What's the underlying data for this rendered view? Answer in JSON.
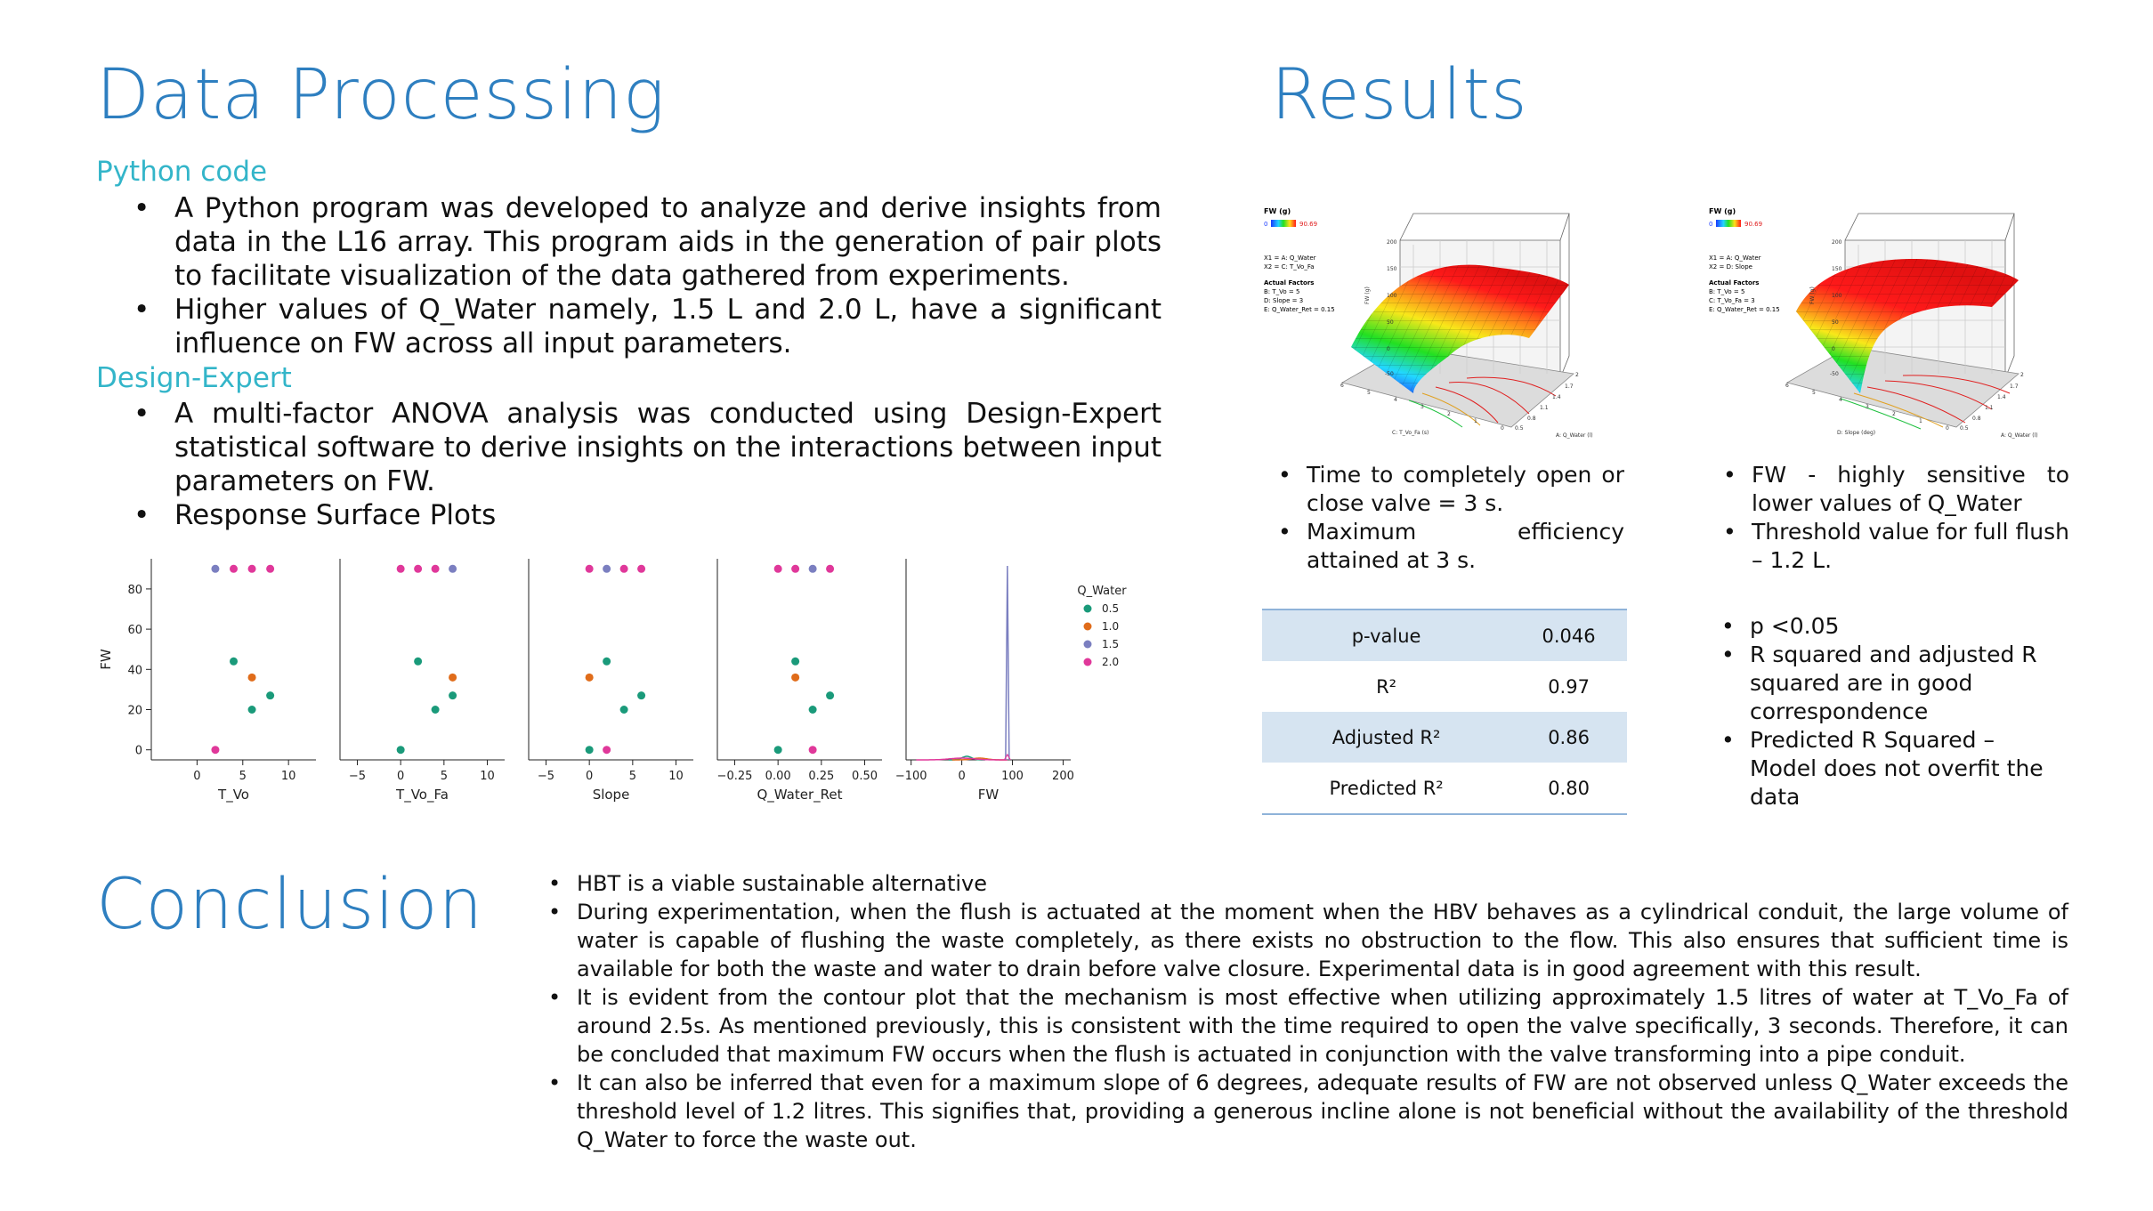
{
  "data_processing": {
    "title": "Data Processing",
    "python": {
      "heading": "Python code",
      "bullets": [
        "A Python program was developed to analyze and derive insights from data in the L16 array. This program aids in the generation of pair plots to facilitate visualization of the data gathered from experiments.",
        "Higher values of Q_Water namely, 1.5 L and 2.0 L, have a significant influence on FW across all input parameters."
      ]
    },
    "design_expert": {
      "heading": "Design-Expert",
      "bullets": [
        "A multi-factor ANOVA analysis was conducted using Design-Expert statistical software to derive insights on the interactions between input parameters on FW.",
        "Response Surface Plots"
      ]
    }
  },
  "results": {
    "title": "Results",
    "plot_left": {
      "legend_title": "FW (g)",
      "legend_min": "0",
      "legend_max": "90.69",
      "x1": "X1 = A: Q_Water",
      "x2": "X2 = C: T_Vo_Fa",
      "actual_heading": "Actual Factors",
      "factors": [
        "B: T_Vo = 5",
        "D: Slope = 3",
        "E: Q_Water_Ret = 0.15"
      ],
      "zlabel": "FW (g)",
      "xaxis": "C: T_Vo_Fa (s)",
      "yaxis": "A: Q_Water (l)",
      "zticks": [
        "200",
        "150",
        "100",
        "50",
        "0",
        "-50"
      ],
      "xticks": [
        "6",
        "5",
        "4",
        "3",
        "2",
        "1",
        "0"
      ],
      "yticks": [
        "2",
        "1.7",
        "1.4",
        "1.1",
        "0.8",
        "0.5"
      ]
    },
    "plot_right": {
      "legend_title": "FW (g)",
      "legend_min": "0",
      "legend_max": "90.69",
      "x1": "X1 = A: Q_Water",
      "x2": "X2 = D: Slope",
      "actual_heading": "Actual Factors",
      "factors": [
        "B: T_Vo = 5",
        "C: T_Vo_Fa = 3",
        "E: Q_Water_Ret = 0.15"
      ],
      "zlabel": "FW (g)",
      "xaxis": "D: Slope (deg)",
      "yaxis": "A: Q_Water (l)",
      "zticks": [
        "200",
        "150",
        "100",
        "50",
        "0",
        "-50"
      ],
      "xticks": [
        "6",
        "5",
        "4",
        "3",
        "2",
        "1",
        "0"
      ],
      "yticks": [
        "2",
        "1.7",
        "1.4",
        "1.1",
        "0.8",
        "0.5"
      ]
    },
    "left_bullets": [
      "Time to completely open or close valve = 3 s.",
      "Maximum efficiency attained at 3 s."
    ],
    "right_bullets": [
      "FW - highly sensitive to lower values of Q_Water",
      "Threshold value for full flush – 1.2 L."
    ],
    "stats_table": [
      {
        "label": "p-value",
        "value": "0.046"
      },
      {
        "label": "R²",
        "value": "0.97"
      },
      {
        "label": "Adjusted R²",
        "value": "0.86"
      },
      {
        "label": "Predicted R²",
        "value": "0.80"
      }
    ],
    "stats_bullets": [
      "p <0.05",
      "R squared and adjusted R squared are in good correspondence",
      "Predicted R Squared – Model does not overfit the data"
    ]
  },
  "conclusion": {
    "title": "Conclusion",
    "bullets": [
      "HBT is a viable sustainable alternative",
      "During experimentation, when the flush is actuated at the moment when the HBV behaves as a cylindrical conduit, the large volume of water is capable of flushing the waste completely, as there exists no obstruction to the flow. This also ensures that sufficient time is available for both the waste and water to drain before valve closure. Experimental data is in good agreement with this result.",
      "It is evident from the contour plot that the mechanism is most effective when utilizing approximately 1.5 litres of water at T_Vo_Fa of around 2.5s. As mentioned previously, this is consistent with the time required to open the valve specifically, 3 seconds. Therefore, it can be concluded that maximum FW occurs when the flush is actuated in conjunction with the valve transforming into a pipe conduit.",
      "It can also be inferred that even for a maximum slope of 6 degrees, adequate results of FW are not observed unless Q_Water exceeds the threshold level of 1.2 litres. This signifies that, providing a generous incline alone is not beneficial without the availability of the threshold Q_Water to force the waste out."
    ]
  },
  "chart_data": {
    "type": "scatter",
    "ylabel": "FW",
    "yticks": [
      "0",
      "20",
      "40",
      "60",
      "80"
    ],
    "ylim": [
      -5,
      95
    ],
    "legend": {
      "title": "Q_Water",
      "entries": [
        "0.5",
        "1.0",
        "1.5",
        "2.0"
      ],
      "placement": "right"
    },
    "colors": {
      "0.5": "#1a9a7a",
      "1.0": "#e06c1a",
      "1.5": "#7b7fc0",
      "2.0": "#e0389a"
    },
    "panels": [
      {
        "xlabel": "T_Vo",
        "xticks": [
          "0",
          "5",
          "10"
        ],
        "xlim": [
          -5,
          13
        ],
        "points": [
          [
            2,
            90,
            "1.5"
          ],
          [
            4,
            90,
            "2.0"
          ],
          [
            6,
            90,
            "2.0"
          ],
          [
            8,
            90,
            "2.0"
          ],
          [
            4,
            44,
            "0.5"
          ],
          [
            6,
            36,
            "1.0"
          ],
          [
            8,
            27,
            "0.5"
          ],
          [
            6,
            20,
            "0.5"
          ],
          [
            2,
            0,
            "2.0"
          ]
        ]
      },
      {
        "xlabel": "T_Vo_Fa",
        "xticks": [
          "−5",
          "0",
          "5",
          "10"
        ],
        "xlim": [
          -7,
          12
        ],
        "points": [
          [
            0,
            90,
            "2.0"
          ],
          [
            2,
            90,
            "2.0"
          ],
          [
            4,
            90,
            "2.0"
          ],
          [
            6,
            90,
            "1.5"
          ],
          [
            2,
            44,
            "0.5"
          ],
          [
            6,
            36,
            "1.0"
          ],
          [
            6,
            27,
            "0.5"
          ],
          [
            4,
            20,
            "0.5"
          ],
          [
            0,
            0,
            "0.5"
          ]
        ]
      },
      {
        "xlabel": "Slope",
        "xticks": [
          "−5",
          "0",
          "5",
          "10"
        ],
        "xlim": [
          -7,
          12
        ],
        "points": [
          [
            0,
            90,
            "2.0"
          ],
          [
            2,
            90,
            "1.5"
          ],
          [
            4,
            90,
            "2.0"
          ],
          [
            6,
            90,
            "2.0"
          ],
          [
            2,
            44,
            "0.5"
          ],
          [
            0,
            36,
            "1.0"
          ],
          [
            6,
            27,
            "0.5"
          ],
          [
            4,
            20,
            "0.5"
          ],
          [
            0,
            0,
            "0.5"
          ],
          [
            2,
            0,
            "2.0"
          ]
        ]
      },
      {
        "xlabel": "Q_Water_Ret",
        "xticks": [
          "−0.25",
          "0.00",
          "0.25",
          "0.50"
        ],
        "xlim": [
          -0.35,
          0.6
        ],
        "points": [
          [
            0,
            90,
            "2.0"
          ],
          [
            0.1,
            90,
            "2.0"
          ],
          [
            0.2,
            90,
            "1.5"
          ],
          [
            0.3,
            90,
            "2.0"
          ],
          [
            0.1,
            44,
            "0.5"
          ],
          [
            0.1,
            36,
            "1.0"
          ],
          [
            0.3,
            27,
            "0.5"
          ],
          [
            0.2,
            20,
            "0.5"
          ],
          [
            0,
            0,
            "0.5"
          ],
          [
            0.2,
            0,
            "2.0"
          ]
        ]
      },
      {
        "xlabel": "FW",
        "xticks": [
          "−100",
          "0",
          "100",
          "200"
        ],
        "xlim": [
          -110,
          215
        ],
        "kind": "kde"
      }
    ]
  }
}
